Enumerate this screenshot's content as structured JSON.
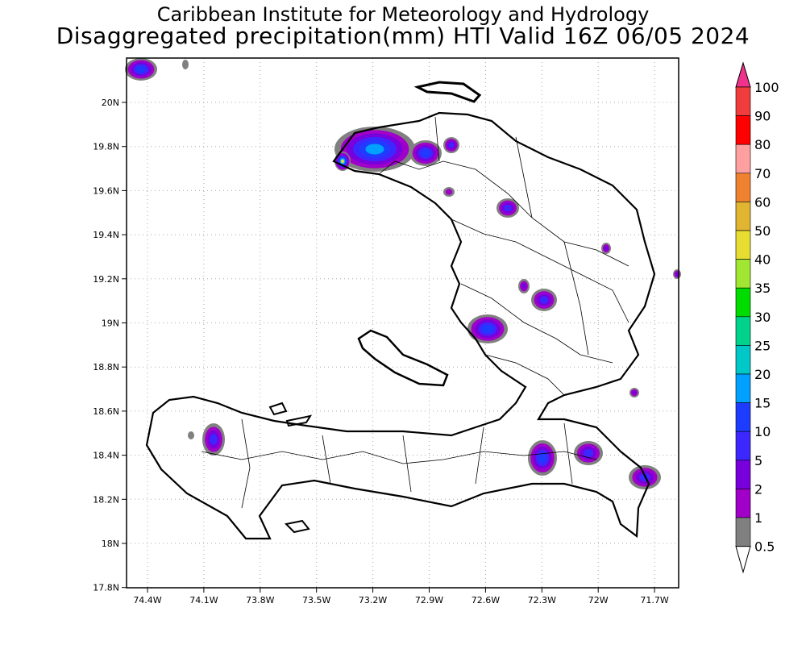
{
  "title": {
    "line1": "Caribbean Institute for Meteorology and Hydrology",
    "line2": "Disaggregated precipitation(mm) HTI Valid 16Z 06/05 2024"
  },
  "axes": {
    "lon_ticks": [
      "74.4W",
      "74.1W",
      "73.8W",
      "73.5W",
      "73.2W",
      "72.9W",
      "72.6W",
      "72.3W",
      "72W",
      "71.7W"
    ],
    "lat_ticks": [
      "20N",
      "19.8N",
      "19.6N",
      "19.4N",
      "19.2N",
      "19N",
      "18.8N",
      "18.6N",
      "18.4N",
      "18.2N",
      "18N",
      "17.8N"
    ]
  },
  "colorbar": {
    "labels": [
      "100",
      "90",
      "80",
      "70",
      "60",
      "50",
      "40",
      "35",
      "30",
      "25",
      "20",
      "15",
      "10",
      "5",
      "2",
      "1",
      "0.5"
    ],
    "colors": [
      "#f0328c",
      "#f03c3c",
      "#ff0000",
      "#ffa0a0",
      "#ef8230",
      "#e1b432",
      "#e6dc32",
      "#a0e632",
      "#00dc00",
      "#00d28c",
      "#00c8c8",
      "#00a0ff",
      "#1e3cff",
      "#3c28ff",
      "#7800dc",
      "#a000c8",
      "#808080",
      "#ffffff"
    ]
  },
  "rain_colors": {
    "trace": "#808080",
    "light": "#a000c8",
    "low": "#7800dc",
    "mid": "#3c28ff",
    "high": "#1e3cff",
    "peak": "#00a0ff",
    "max": "#e6dc32"
  }
}
